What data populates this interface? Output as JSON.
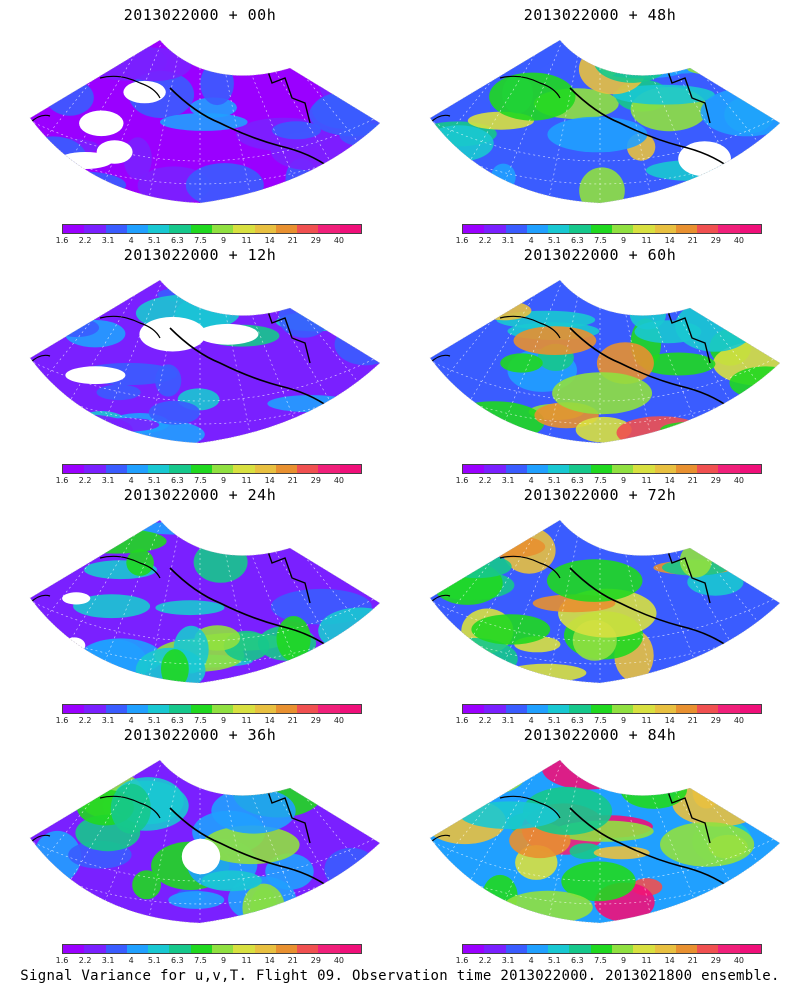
{
  "panels": [
    {
      "title": "2013022000 + 00h",
      "intensity": 0.25
    },
    {
      "title": "2013022000 + 48h",
      "intensity": 0.62
    },
    {
      "title": "2013022000 + 12h",
      "intensity": 0.35
    },
    {
      "title": "2013022000 + 60h",
      "intensity": 0.72
    },
    {
      "title": "2013022000 + 24h",
      "intensity": 0.45
    },
    {
      "title": "2013022000 + 72h",
      "intensity": 0.8
    },
    {
      "title": "2013022000 + 36h",
      "intensity": 0.52
    },
    {
      "title": "2013022000 + 84h",
      "intensity": 0.88
    }
  ],
  "colorbar": {
    "labels": [
      "1.6",
      "2.2",
      "3.1",
      "4",
      "5.1",
      "6.3",
      "7.5",
      "9",
      "11",
      "14",
      "21",
      "29",
      "40"
    ],
    "colors": [
      "#9a00ff",
      "#7a20ff",
      "#3a5cff",
      "#20a0ff",
      "#19c8d2",
      "#16c88c",
      "#20d820",
      "#90e040",
      "#d8e040",
      "#e8c040",
      "#e89030",
      "#f05050",
      "#f0207a",
      "#f0107a"
    ]
  },
  "caption": "Signal Variance for u,v,T. Flight 09. Observation time 2013022000. 2013021800 ensemble."
}
